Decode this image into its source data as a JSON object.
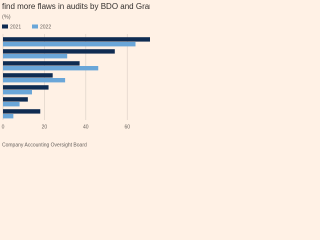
{
  "chart_data": {
    "type": "hbar",
    "title": "find more flaws in audits by BDO and Grant Thornton",
    "subtitle": "(%)",
    "source": "Company Accounting Oversight Board",
    "categories": [
      null,
      null,
      null,
      null,
      null,
      null,
      null
    ],
    "series": [
      {
        "name": "2021",
        "color": "#0f2c52",
        "values": [
          72,
          54,
          37,
          24,
          22,
          12,
          18
        ]
      },
      {
        "name": "2022",
        "color": "#6aa6d8",
        "values": [
          64,
          31,
          46,
          30,
          14,
          8,
          5
        ]
      }
    ],
    "xlim": [
      0,
      71
    ],
    "xticks": [
      0,
      20,
      40,
      60
    ],
    "grid": true
  }
}
